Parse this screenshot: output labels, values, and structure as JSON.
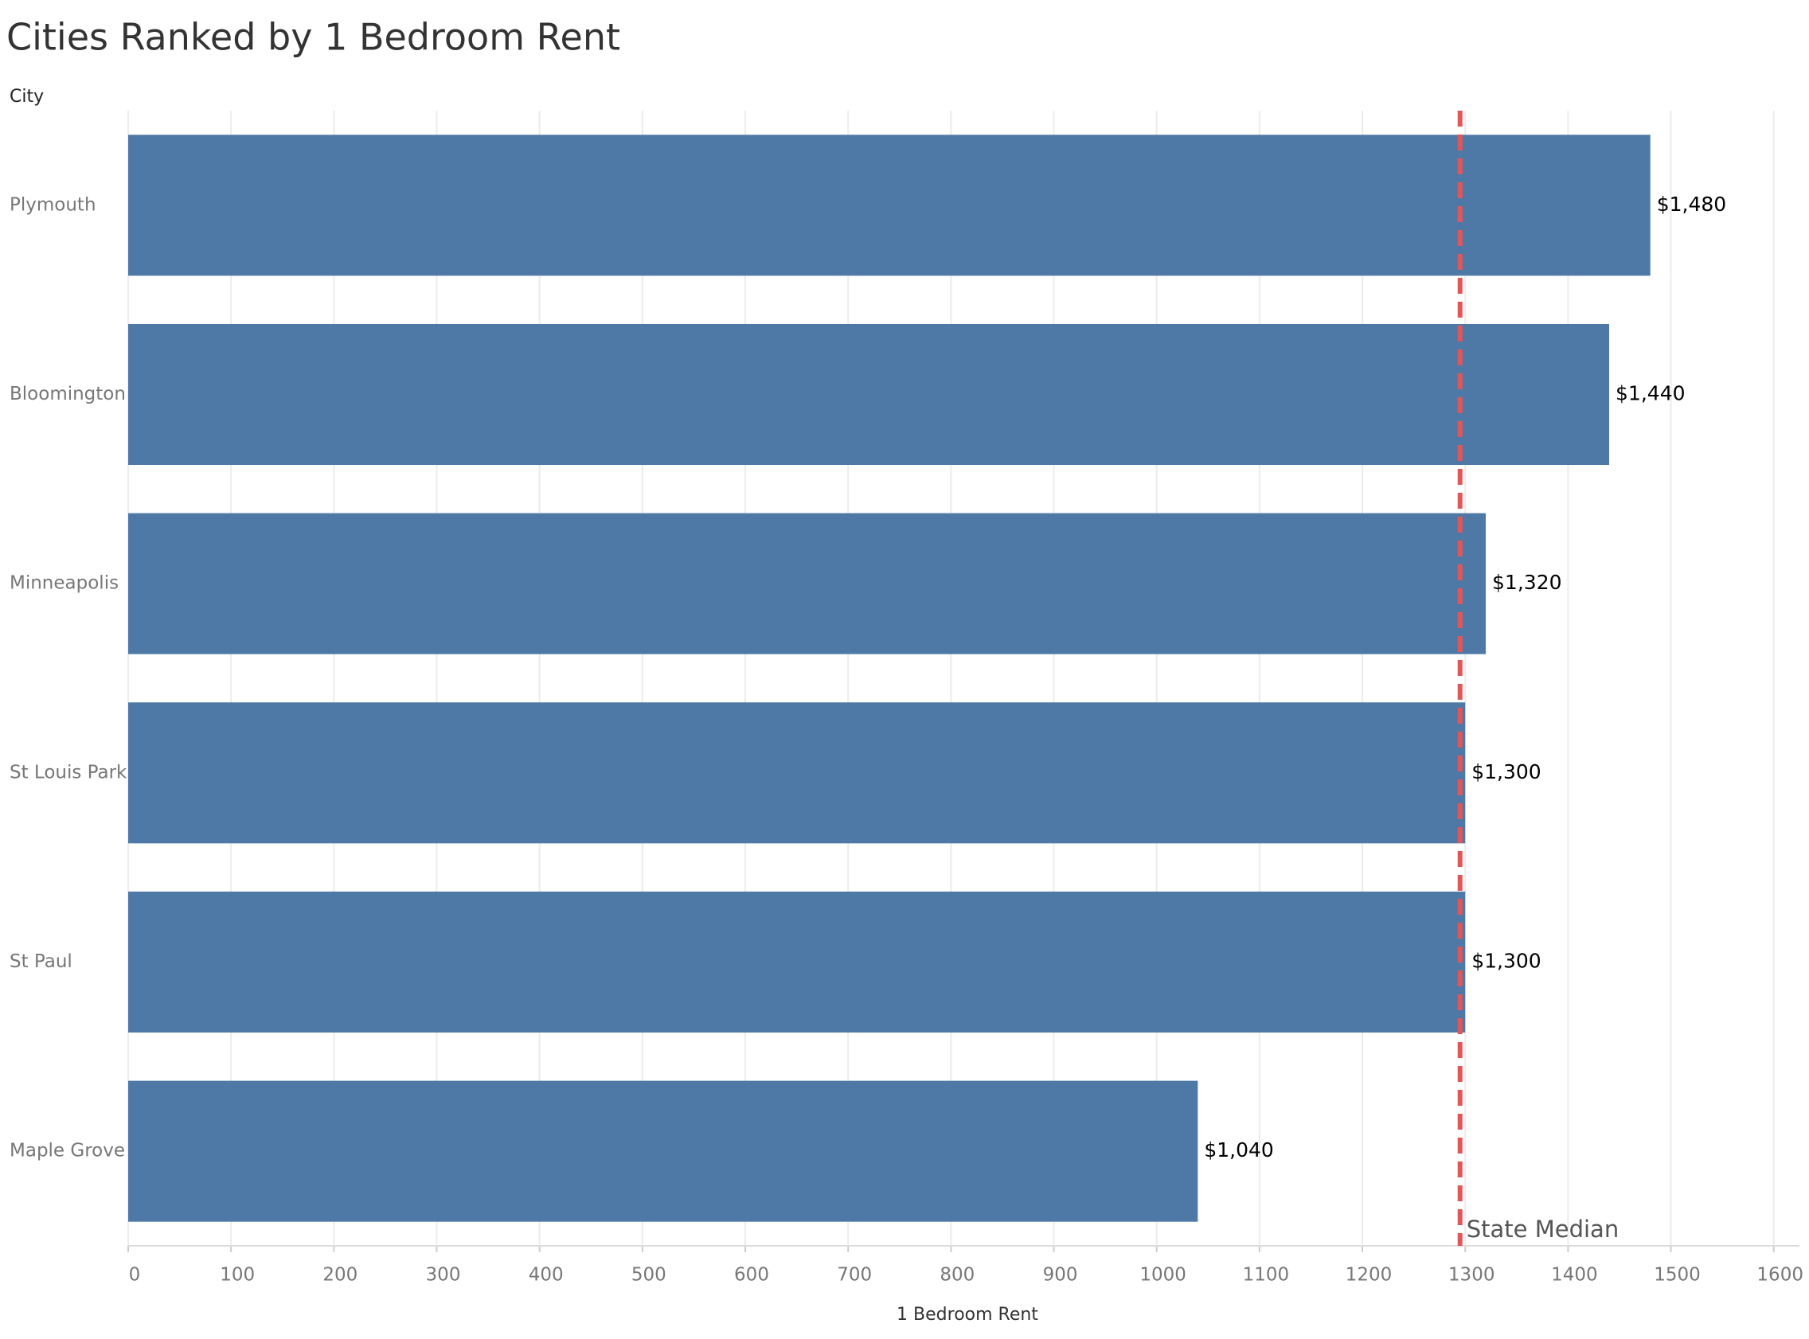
{
  "chart_data": {
    "type": "bar",
    "orientation": "horizontal",
    "title": "Cities Ranked by 1 Bedroom Rent",
    "y_label": "City",
    "x_label": "1 Bedroom Rent",
    "categories": [
      "Plymouth",
      "Bloomington",
      "Minneapolis",
      "St Louis Park",
      "St Paul",
      "Maple Grove"
    ],
    "values": [
      1480,
      1440,
      1320,
      1300,
      1300,
      1040
    ],
    "value_labels": [
      "$1,480",
      "$1,440",
      "$1,320",
      "$1,300",
      "$1,300",
      "$1,040"
    ],
    "color": "#4e79a7",
    "xlim": [
      0,
      1625
    ],
    "xticks": [
      0,
      100,
      200,
      300,
      400,
      500,
      600,
      700,
      800,
      900,
      1000,
      1100,
      1200,
      1300,
      1400,
      1500,
      1600
    ],
    "grid": true,
    "reference_line": {
      "value": 1295,
      "label": "State Median",
      "color": "#e15759"
    }
  }
}
